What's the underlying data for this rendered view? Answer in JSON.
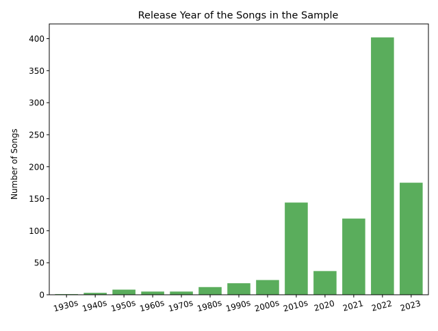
{
  "chart_data": {
    "type": "bar",
    "title": "Release Year of the Songs in the Sample",
    "xlabel": "",
    "ylabel": "Number of Songs",
    "categories": [
      "1930s",
      "1940s",
      "1950s",
      "1960s",
      "1970s",
      "1980s",
      "1990s",
      "2000s",
      "2010s",
      "2020",
      "2021",
      "2022",
      "2023"
    ],
    "values": [
      1,
      3,
      8,
      5,
      5,
      12,
      18,
      23,
      144,
      37,
      119,
      402,
      175
    ],
    "ylim": [
      0,
      423
    ],
    "yticks": [
      0,
      50,
      100,
      150,
      200,
      250,
      300,
      350,
      400
    ],
    "x_tick_rotation_deg": 15,
    "bar_color": "#5aad5c",
    "grid": false,
    "legend": "none"
  }
}
